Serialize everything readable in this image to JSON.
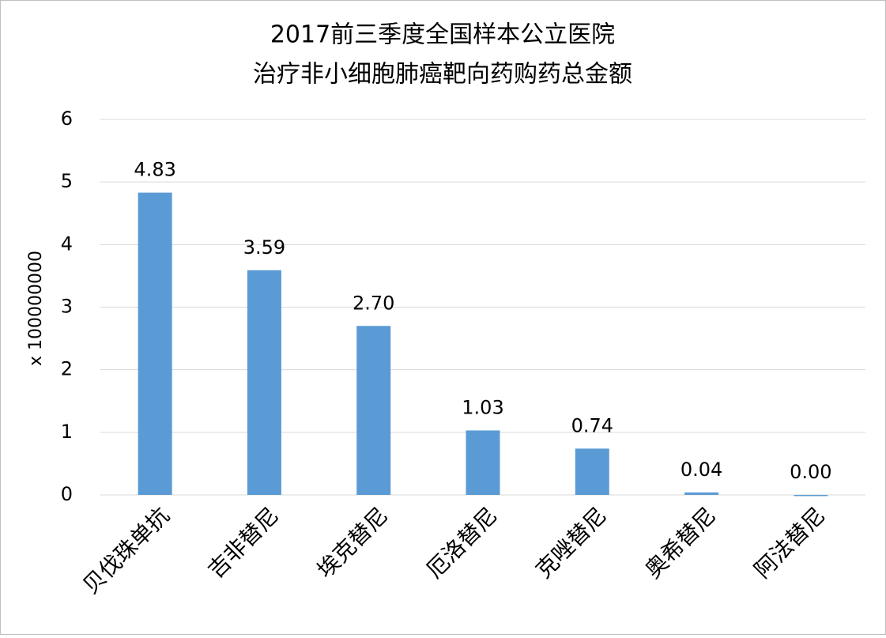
{
  "chart_data": {
    "type": "bar",
    "title": "2017前三季度全国样本公立医院",
    "subtitle": "治疗非小细胞肺癌靶向药购药总金额",
    "y_label": "x 100000000",
    "categories": [
      "贝伐珠单抗",
      "吉非替尼",
      "埃克替尼",
      "厄洛替尼",
      "克唑替尼",
      "奥希替尼",
      "阿法替尼"
    ],
    "values": [
      4.83,
      3.59,
      2.7,
      1.03,
      0.74,
      0.04,
      0.0
    ],
    "value_labels": [
      "4.83",
      "3.59",
      "2.70",
      "1.03",
      "0.74",
      "0.04",
      "0.00"
    ],
    "color": "#5b9bd5",
    "ylim": [
      0,
      6
    ],
    "yticks": [
      0,
      1,
      2,
      3,
      4,
      5,
      6
    ],
    "grid": true
  }
}
